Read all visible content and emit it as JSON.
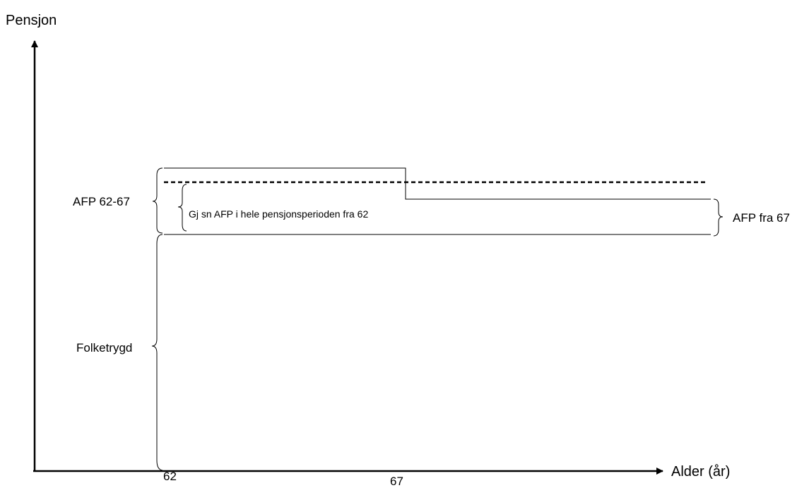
{
  "diagram": {
    "y_axis_title": "Pensjon",
    "x_axis_title": "Alder (år)",
    "ticks": {
      "age_62": "62",
      "age_67": "67"
    },
    "labels": {
      "afp_62_67": "AFP 62-67",
      "average_afp": "Gj sn AFP i hele pensjonsperioden fra 62",
      "afp_from_67": "AFP fra 67",
      "folketrygd": "Folketrygd"
    },
    "colors": {
      "ink": "#000000",
      "background": "#ffffff"
    }
  }
}
